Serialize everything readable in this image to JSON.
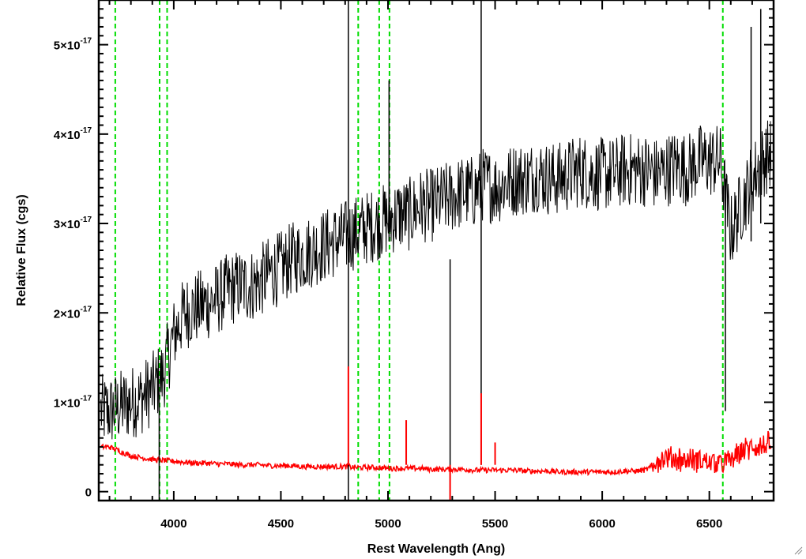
{
  "chart_data": {
    "type": "line",
    "title": "",
    "xlabel": "Rest Wavelength (Ang)",
    "ylabel": "Relative Flux (cgs)",
    "xlim": [
      3650,
      6800
    ],
    "ylim": [
      -0.1,
      5.5
    ],
    "y_unit_multiplier": "10^-17",
    "x_ticks": [
      4000,
      4500,
      5000,
      5500,
      6000,
      6500
    ],
    "y_ticks": [
      {
        "value": 0,
        "mantissa": "0",
        "exponent": ""
      },
      {
        "value": 1,
        "mantissa": "1×10",
        "exponent": "-17"
      },
      {
        "value": 2,
        "mantissa": "2×10",
        "exponent": "-17"
      },
      {
        "value": 3,
        "mantissa": "3×10",
        "exponent": "-17"
      },
      {
        "value": 4,
        "mantissa": "4×10",
        "exponent": "-17"
      },
      {
        "value": 5,
        "mantissa": "5×10",
        "exponent": "-17"
      }
    ],
    "x_labels": [
      "4000",
      "4500",
      "5000",
      "5500",
      "6000",
      "6500"
    ],
    "reference_lines": [
      3727,
      3934,
      3969,
      4861,
      4959,
      5007,
      6563
    ],
    "grid": false,
    "series": [
      {
        "color": "#000000",
        "x": [
          3660,
          3700,
          3750,
          3800,
          3850,
          3900,
          3950,
          4000,
          4050,
          4100,
          4150,
          4200,
          4250,
          4300,
          4350,
          4400,
          4450,
          4500,
          4550,
          4600,
          4650,
          4700,
          4750,
          4800,
          4850,
          4900,
          4950,
          5000,
          5050,
          5100,
          5150,
          5200,
          5250,
          5300,
          5350,
          5400,
          5450,
          5500,
          5550,
          5600,
          5650,
          5700,
          5750,
          5800,
          5850,
          5900,
          5950,
          6000,
          6050,
          6100,
          6150,
          6200,
          6250,
          6300,
          6350,
          6400,
          6450,
          6500,
          6550,
          6600,
          6650,
          6700,
          6750,
          6790
        ],
        "y": [
          0.9,
          0.9,
          0.95,
          1.0,
          1.05,
          1.15,
          1.3,
          1.75,
          2.0,
          2.05,
          2.1,
          2.15,
          2.25,
          2.3,
          2.3,
          2.35,
          2.45,
          2.5,
          2.6,
          2.65,
          2.7,
          2.75,
          2.8,
          2.85,
          2.9,
          2.95,
          3.0,
          3.05,
          3.1,
          3.1,
          3.2,
          3.2,
          3.25,
          3.3,
          3.35,
          3.35,
          3.45,
          3.4,
          3.45,
          3.5,
          3.5,
          3.55,
          3.5,
          3.5,
          3.55,
          3.6,
          3.55,
          3.55,
          3.55,
          3.6,
          3.6,
          3.6,
          3.55,
          3.6,
          3.65,
          3.6,
          3.7,
          3.7,
          3.7,
          2.9,
          3.2,
          3.5,
          3.7,
          3.8
        ]
      },
      {
        "color": "#ff0000",
        "x": [
          3660,
          3700,
          3750,
          3800,
          3850,
          3900,
          3950,
          4000,
          4050,
          4100,
          4150,
          4200,
          4250,
          4300,
          4350,
          4400,
          4450,
          4500,
          4550,
          4600,
          4650,
          4700,
          4750,
          4800,
          4850,
          4900,
          4950,
          5000,
          5050,
          5100,
          5150,
          5200,
          5250,
          5300,
          5350,
          5400,
          5450,
          5500,
          5550,
          5600,
          5650,
          5700,
          5750,
          5800,
          5850,
          5900,
          5950,
          6000,
          6050,
          6100,
          6150,
          6200,
          6250,
          6300,
          6350,
          6400,
          6450,
          6500,
          6550,
          6600,
          6650,
          6700,
          6750,
          6790
        ],
        "y": [
          0.5,
          0.5,
          0.45,
          0.4,
          0.38,
          0.36,
          0.35,
          0.34,
          0.33,
          0.32,
          0.32,
          0.31,
          0.31,
          0.3,
          0.3,
          0.3,
          0.29,
          0.29,
          0.29,
          0.28,
          0.28,
          0.28,
          0.28,
          0.28,
          0.27,
          0.27,
          0.27,
          0.26,
          0.26,
          0.26,
          0.26,
          0.25,
          0.25,
          0.25,
          0.25,
          0.24,
          0.24,
          0.24,
          0.24,
          0.24,
          0.23,
          0.23,
          0.23,
          0.22,
          0.22,
          0.22,
          0.22,
          0.22,
          0.22,
          0.23,
          0.23,
          0.24,
          0.3,
          0.32,
          0.32,
          0.3,
          0.3,
          0.28,
          0.26,
          0.3,
          0.4,
          0.45,
          0.45,
          0.5
        ]
      }
    ],
    "spikes": [
      {
        "series": 0,
        "x": 4815,
        "low": -0.1,
        "high": 5.5
      },
      {
        "series": 0,
        "x": 5290,
        "low": -0.1,
        "high": 2.6
      },
      {
        "series": 0,
        "x": 5435,
        "low": 0.3,
        "high": 5.5
      },
      {
        "series": 0,
        "x": 5005,
        "low": 2.8,
        "high": 4.6
      },
      {
        "series": 0,
        "x": 6695,
        "low": 2.8,
        "high": 5.2
      },
      {
        "series": 0,
        "x": 6740,
        "low": 3.0,
        "high": 5.4
      },
      {
        "series": 0,
        "x": 3932,
        "low": -0.1,
        "high": 1.0
      },
      {
        "series": 0,
        "x": 6575,
        "low": 0.9,
        "high": 3.5
      },
      {
        "series": 1,
        "x": 4815,
        "low": 0.3,
        "high": 1.4
      },
      {
        "series": 1,
        "x": 5085,
        "low": 0.3,
        "high": 0.8
      },
      {
        "series": 1,
        "x": 5435,
        "low": 0.3,
        "high": 1.1
      },
      {
        "series": 1,
        "x": 5500,
        "low": 0.3,
        "high": 0.55
      },
      {
        "series": 1,
        "x": 5290,
        "low": -0.1,
        "high": 0.3
      }
    ]
  }
}
